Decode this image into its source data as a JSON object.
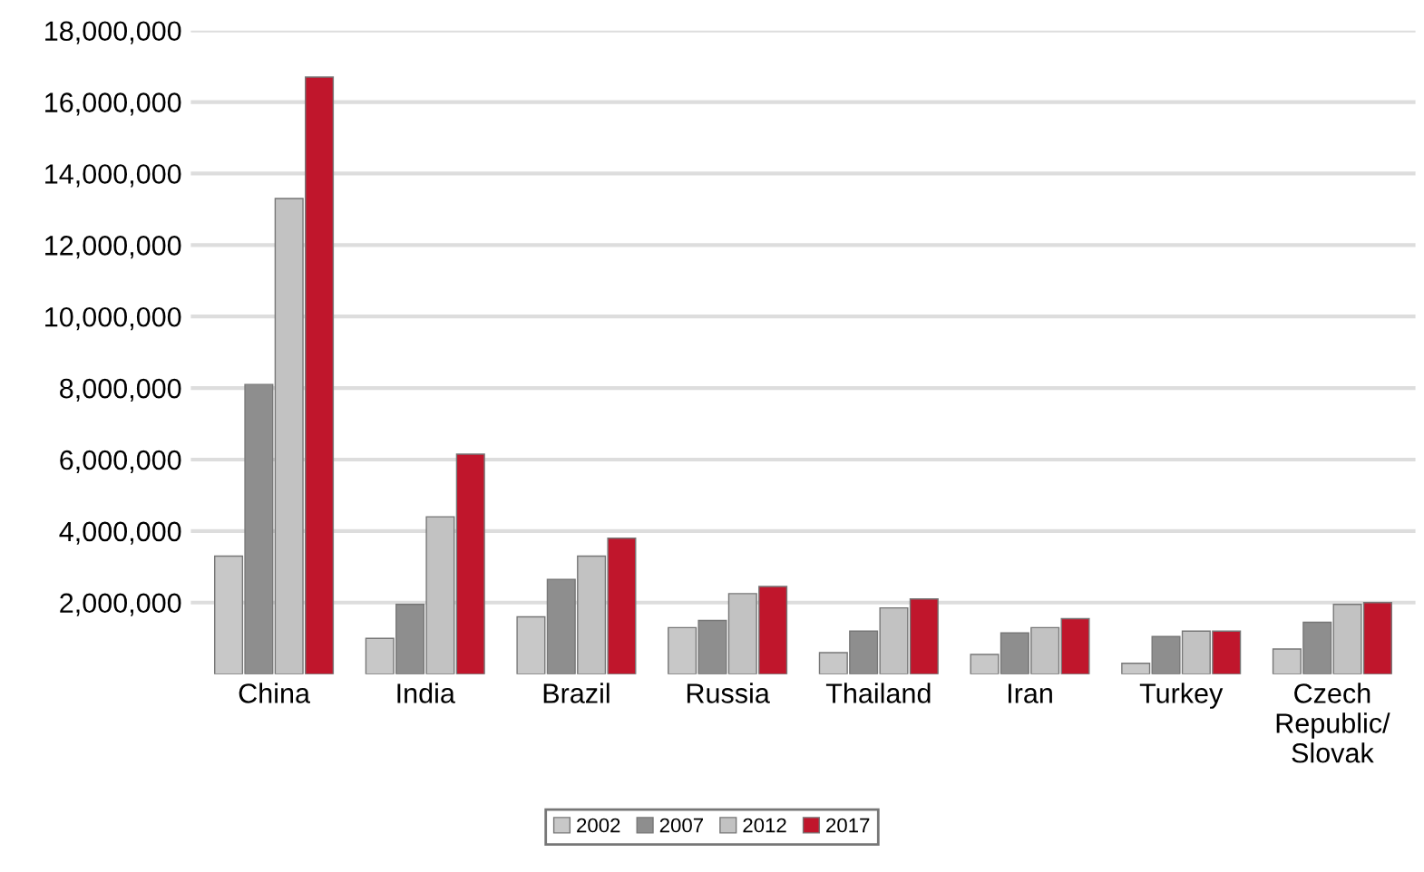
{
  "chart_data": {
    "type": "bar",
    "categories": [
      "China",
      "India",
      "Brazil",
      "Russia",
      "Thailand",
      "Iran",
      "Turkey",
      "Czech\nRepublic/\nSlovak"
    ],
    "series": [
      {
        "name": "2002",
        "color": "#c8c8c8",
        "values": [
          3300000,
          1000000,
          1600000,
          1300000,
          600000,
          550000,
          300000,
          700000
        ]
      },
      {
        "name": "2007",
        "color": "#8e8e8e",
        "values": [
          8100000,
          1950000,
          2650000,
          1500000,
          1200000,
          1150000,
          1050000,
          1450000
        ]
      },
      {
        "name": "2012",
        "color": "#c2c2c2",
        "values": [
          13300000,
          4400000,
          3300000,
          2250000,
          1850000,
          1300000,
          1200000,
          1950000
        ]
      },
      {
        "name": "2017",
        "color": "#c0162c",
        "values": [
          16700000,
          6150000,
          3800000,
          2450000,
          2100000,
          1550000,
          1200000,
          2000000
        ]
      }
    ],
    "ylim": [
      0,
      18000000
    ],
    "yticks": [
      {
        "value": 2000000,
        "label": "2,000,000"
      },
      {
        "value": 4000000,
        "label": "4,000,000"
      },
      {
        "value": 6000000,
        "label": "6,000,000"
      },
      {
        "value": 8000000,
        "label": "8,000,000"
      },
      {
        "value": 10000000,
        "label": "10,000,000"
      },
      {
        "value": 12000000,
        "label": "12,000,000"
      },
      {
        "value": 14000000,
        "label": "14,000,000"
      },
      {
        "value": 16000000,
        "label": "16,000,000"
      },
      {
        "value": 18000000,
        "label": "18,000,000"
      }
    ],
    "grid": "y",
    "legend": "bottom"
  }
}
